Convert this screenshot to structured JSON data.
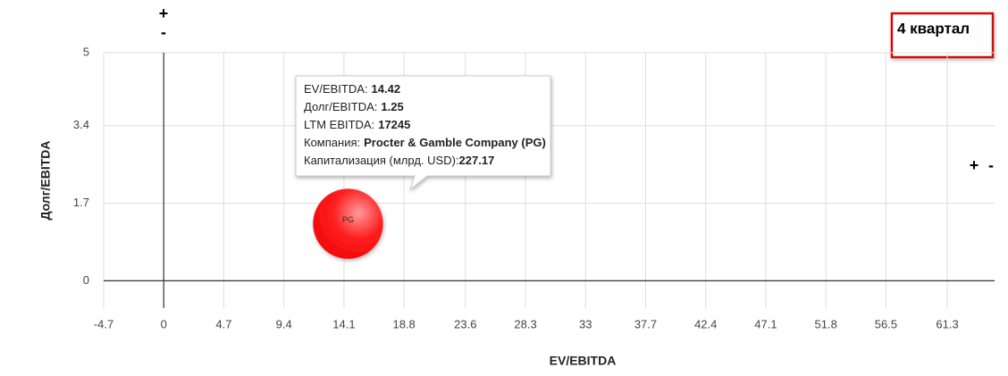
{
  "chart_data": {
    "type": "bubble",
    "xlabel": "EV/EBITDA",
    "ylabel": "Долг/EBITDA",
    "xlim": [
      -4.7,
      65
    ],
    "ylim": [
      -0.6,
      5
    ],
    "xticks": [
      -4.7,
      0,
      4.7,
      9.4,
      14.1,
      18.8,
      23.6,
      28.3,
      33,
      37.7,
      42.4,
      47.1,
      51.8,
      56.5,
      61.3
    ],
    "yticks": [
      0,
      1.7,
      3.4,
      5
    ],
    "grid": true,
    "series": [
      {
        "name": "PG",
        "color": "#ff0000",
        "x": [
          14.42
        ],
        "values": [
          1.25
        ],
        "sizes": [
          227.17
        ],
        "ltm_ebitda": [
          17245
        ],
        "company": [
          "Procter & Gamble Company (PG)"
        ]
      }
    ],
    "tooltip": {
      "labels": [
        "EV/EBITDA:",
        "Долг/EBITDA:",
        "LTM EBITDA:",
        "Компания:",
        "Капитализация (млрд. USD):"
      ]
    },
    "annotations": {
      "period": "4 квартал",
      "top_plus": "+",
      "top_minus": "-",
      "right_plus": "+",
      "right_minus": "-"
    }
  }
}
